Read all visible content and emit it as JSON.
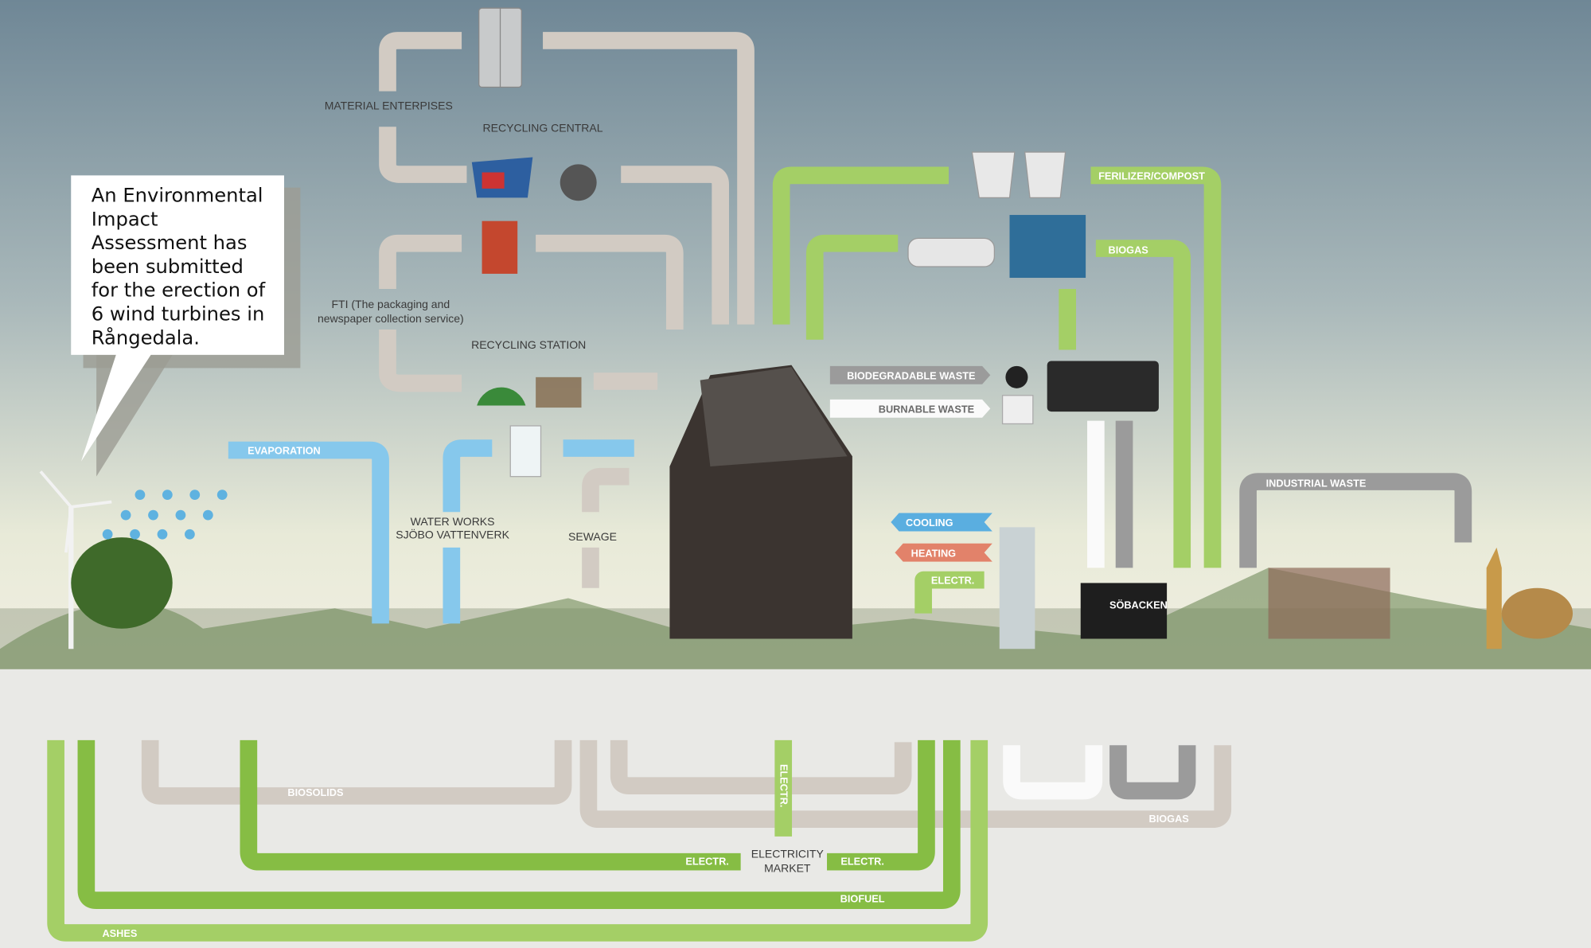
{
  "callout": {
    "lines": [
      "An Environmental",
      "Impact",
      "Assessment has",
      "been submitted",
      "for the erection of",
      "6 wind turbines in",
      "Rångedala."
    ]
  },
  "labels": {
    "material_enterprises": "MATERIAL ENTERPISES",
    "recycling_central": "RECYCLING CENTRAL",
    "fti_1": "FTI (The packaging and",
    "fti_2": "newspaper collection service)",
    "recycling_station": "RECYCLING STATION",
    "evaporation": "EVAPORATION",
    "water_works": "WATER WORKS",
    "water_works_name": "SJÖBO VATTENVERK",
    "sewage": "SEWAGE",
    "biodegradable_waste": "BIODEGRADABLE WASTE",
    "burnable_waste": "BURNABLE WASTE",
    "fertilizer_compost": "FERILIZER/COMPOST",
    "biogas_top": "BIOGAS",
    "industrial_waste": "INDUSTRIAL WASTE",
    "cooling": "COOLING",
    "heating": "HEATING",
    "electr_top": "ELECTR.",
    "biosolids": "BIOSOLIDS",
    "electr_left": "ELECTR.",
    "electricity_market_1": "ELECTRICITY",
    "electricity_market_2": "MARKET",
    "electr_right": "ELECTR.",
    "electr_vertical": "ELECTR.",
    "biofuel": "BIOFUEL",
    "ashes": "ASHES",
    "biogas_bottom": "BIOGAS",
    "sign": "SÖBACKEN"
  }
}
